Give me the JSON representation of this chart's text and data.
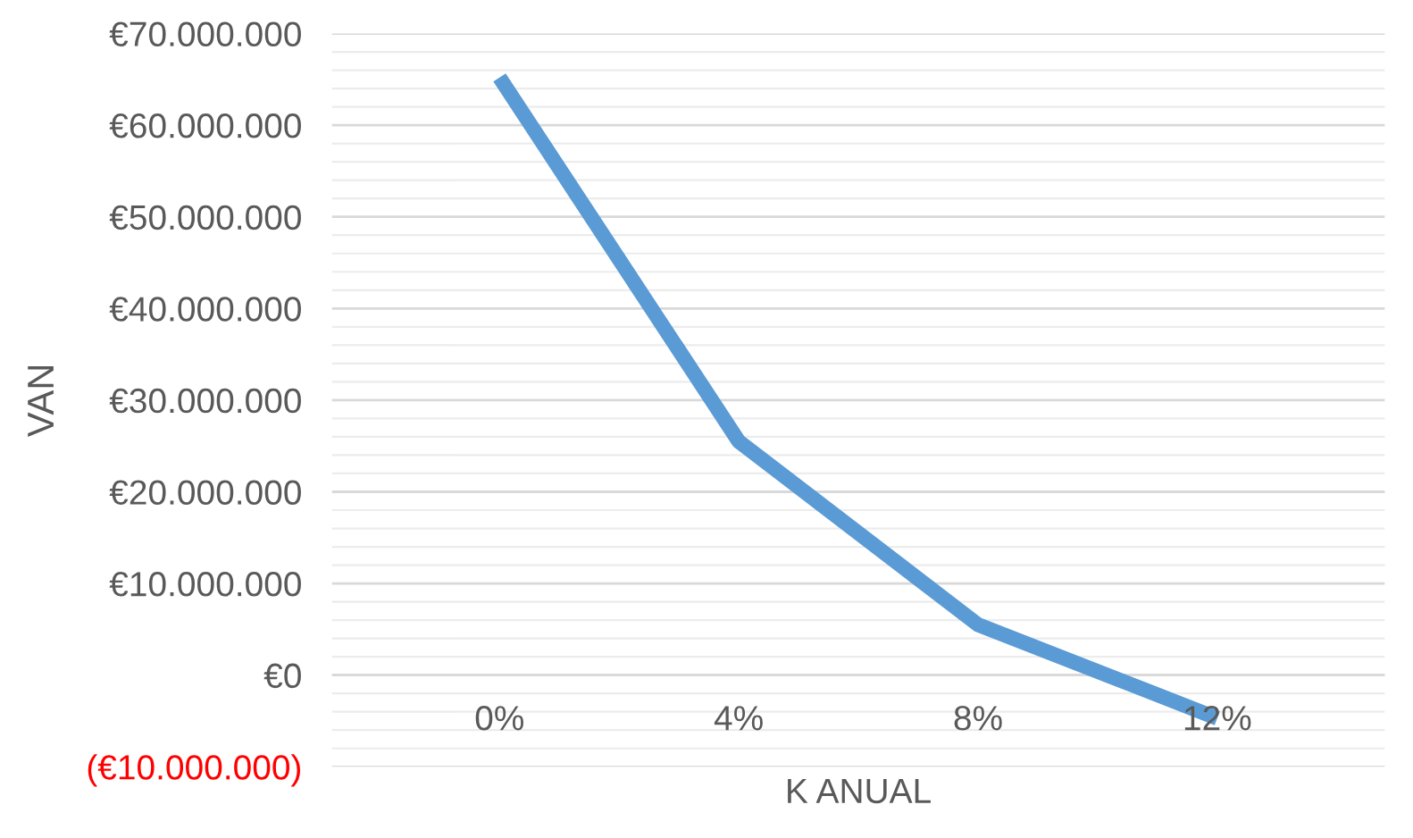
{
  "chart_data": {
    "type": "line",
    "xlabel": "K ANUAL",
    "ylabel": "VAN",
    "categories": [
      "0%",
      "4%",
      "8%",
      "12%"
    ],
    "series": [
      {
        "color": "#5b9bd5",
        "values": [
          65200000,
          25500000,
          5500000,
          -4700000
        ]
      }
    ],
    "ylim": [
      -10000000,
      70000000
    ],
    "yticks": [
      {
        "value": -10000000,
        "label": "(€10.000.000)"
      },
      {
        "value": 0,
        "label": "€0"
      },
      {
        "value": 10000000,
        "label": "€10.000.000"
      },
      {
        "value": 20000000,
        "label": "€20.000.000"
      },
      {
        "value": 30000000,
        "label": "€30.000.000"
      },
      {
        "value": 40000000,
        "label": "€40.000.000"
      },
      {
        "value": 50000000,
        "label": "€50.000.000"
      },
      {
        "value": 60000000,
        "label": "€60.000.000"
      },
      {
        "value": 70000000,
        "label": "€70.000.000"
      }
    ],
    "grid": true,
    "legend": false,
    "marker": "none",
    "line_style": "solid"
  }
}
